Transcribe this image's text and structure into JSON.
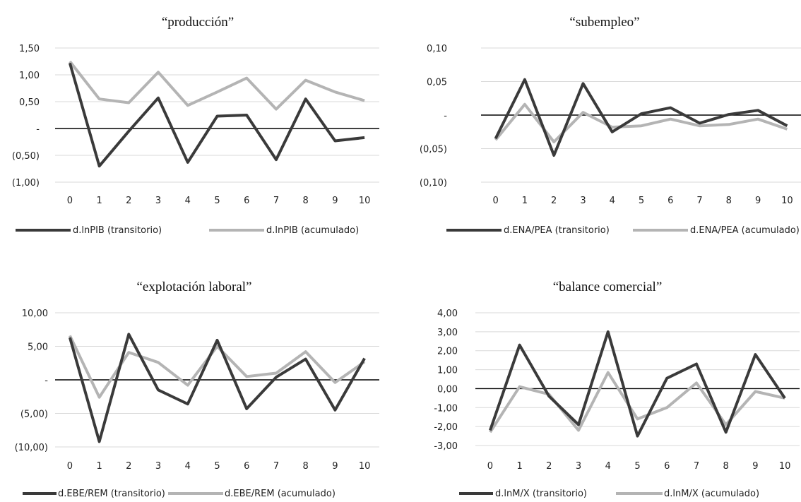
{
  "colors": {
    "transitorio": "#3a3a3a",
    "acumulado": "#b4b4b4",
    "grid": "#d9d9d9",
    "zero_line": "#000000"
  },
  "chart_data": [
    {
      "type": "line",
      "title": "“producción”",
      "x": [
        0,
        1,
        2,
        3,
        4,
        5,
        6,
        7,
        8,
        9,
        10
      ],
      "ylim": [
        -1.0,
        1.5
      ],
      "yticks": [
        1.5,
        1.0,
        0.5,
        0,
        -0.5,
        -1.0
      ],
      "ytick_labels": [
        "1,50",
        "1,00",
        "0,50",
        "-",
        "(0,50)",
        "(1,00)"
      ],
      "grid": true,
      "legend_position": "bottom",
      "series": [
        {
          "name": "d.lnPIB (transitorio)",
          "values": [
            1.22,
            -0.7,
            -0.05,
            0.57,
            -0.63,
            0.23,
            0.25,
            -0.58,
            0.55,
            -0.23,
            -0.17
          ]
        },
        {
          "name": "d.lnPIB (acumulado)",
          "values": [
            1.25,
            0.55,
            0.48,
            1.05,
            0.43,
            0.68,
            0.94,
            0.36,
            0.9,
            0.68,
            0.52
          ]
        }
      ]
    },
    {
      "type": "line",
      "title": "“subempleo”",
      "x": [
        0,
        1,
        2,
        3,
        4,
        5,
        6,
        7,
        8,
        9,
        10
      ],
      "ylim": [
        -0.1,
        0.1
      ],
      "yticks": [
        0.1,
        0.05,
        0,
        -0.05,
        -0.1
      ],
      "ytick_labels": [
        "0,10",
        "0,05",
        "-",
        "(0,05)",
        "(0,10)"
      ],
      "grid": true,
      "legend_position": "bottom",
      "series": [
        {
          "name": "d.ENA/PEA (transitorio)",
          "values": [
            -0.035,
            0.053,
            -0.06,
            0.047,
            -0.025,
            0.002,
            0.011,
            -0.012,
            0.001,
            0.007,
            -0.016
          ]
        },
        {
          "name": "d.ENA/PEA (acumulado)",
          "values": [
            -0.037,
            0.016,
            -0.04,
            0.004,
            -0.018,
            -0.016,
            -0.006,
            -0.016,
            -0.014,
            -0.006,
            -0.021
          ]
        }
      ]
    },
    {
      "type": "line",
      "title": "“explotación laboral”",
      "x": [
        0,
        1,
        2,
        3,
        4,
        5,
        6,
        7,
        8,
        9,
        10
      ],
      "ylim": [
        -10,
        10
      ],
      "yticks": [
        10,
        5,
        0,
        -5,
        -10
      ],
      "ytick_labels": [
        "10,00",
        "5,00",
        "-",
        "(5,00)",
        "(10,00)"
      ],
      "grid": true,
      "legend_position": "bottom",
      "series": [
        {
          "name": "d.EBE/REM (transitorio)",
          "values": [
            6.3,
            -9.2,
            6.8,
            -1.5,
            -3.6,
            5.9,
            -4.3,
            0.4,
            3.1,
            -4.5,
            3.2
          ]
        },
        {
          "name": "d.EBE/REM (acumulado)",
          "values": [
            6.6,
            -2.6,
            4.1,
            2.6,
            -0.8,
            5.0,
            0.5,
            1.0,
            4.2,
            -0.4,
            2.7
          ]
        }
      ]
    },
    {
      "type": "line",
      "title": "“balance comercial”",
      "x": [
        0,
        1,
        2,
        3,
        4,
        5,
        6,
        7,
        8,
        9,
        10
      ],
      "ylim": [
        -3,
        4
      ],
      "yticks": [
        4,
        3,
        2,
        1,
        0,
        -1,
        -2,
        -3
      ],
      "ytick_labels": [
        "4,00",
        "3,00",
        "2,00",
        "1,00",
        "0,00",
        "-1,00",
        "-2,00",
        "-3,00"
      ],
      "grid": true,
      "legend_position": "bottom",
      "series": [
        {
          "name": "d.lnM/X (transitorio)",
          "values": [
            -2.2,
            2.3,
            -0.4,
            -1.9,
            3.0,
            -2.5,
            0.55,
            1.3,
            -2.3,
            1.8,
            -0.5
          ]
        },
        {
          "name": "d.lnM/X (acumulado)",
          "values": [
            -2.3,
            0.1,
            -0.3,
            -2.2,
            0.85,
            -1.6,
            -1.0,
            0.3,
            -1.9,
            -0.15,
            -0.5
          ]
        }
      ]
    }
  ]
}
